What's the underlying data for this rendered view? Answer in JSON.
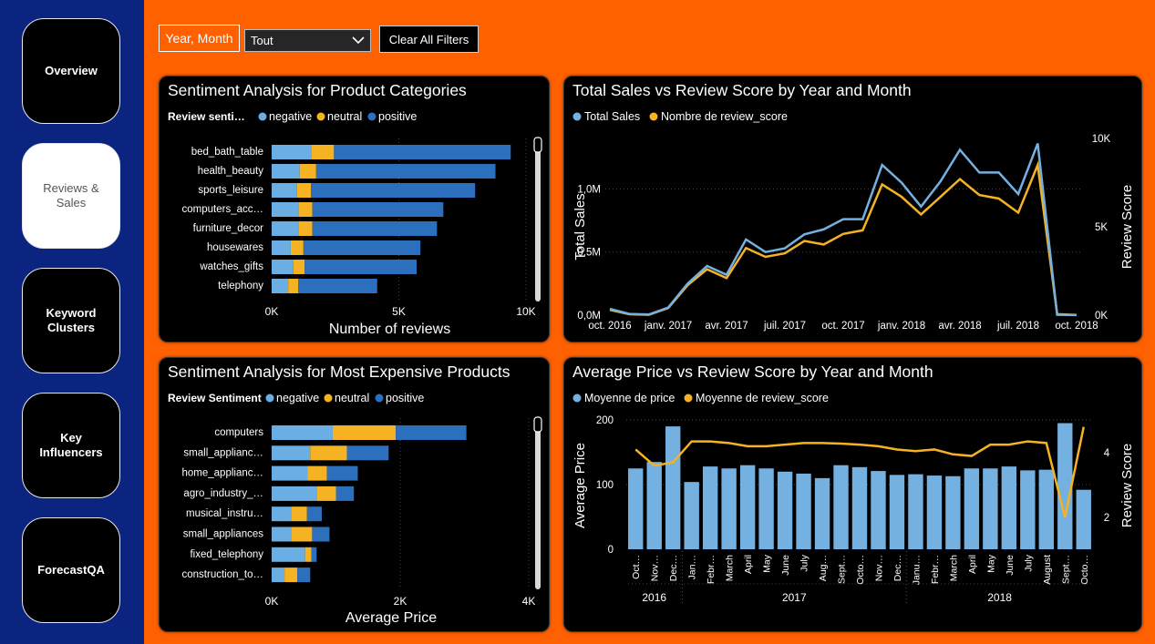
{
  "nav": {
    "overview": "Overview",
    "reviews_sales": [
      "Reviews &",
      "Sales"
    ],
    "keyword_clusters": [
      "Keyword",
      "Clusters"
    ],
    "key_influencers": [
      "Key",
      "Influencers"
    ],
    "forecastqa": "ForecastQA"
  },
  "filters": {
    "year_month_label": "Year, Month",
    "select_value": "Tout",
    "clear_label": "Clear All Filters"
  },
  "colors": {
    "negative": "#6aaee3",
    "neutral": "#f5b324",
    "positive": "#2c6fbd",
    "line_blue": "#74b0e0",
    "line_yellow": "#f5b324",
    "orange": "#ff6000",
    "sidebar": "#0b2480"
  },
  "chart_data": [
    {
      "type": "bar",
      "orientation": "horizontal-stacked",
      "title": "Sentiment Analysis for Product Categories",
      "legend_title": "Review senti…",
      "categories": [
        "bed_bath_table",
        "health_beauty",
        "sports_leisure",
        "computers_acc…",
        "furniture_decor",
        "housewares",
        "watches_gifts",
        "telephony"
      ],
      "series": [
        {
          "name": "negative",
          "values": [
            1550,
            1100,
            1000,
            1050,
            1050,
            750,
            850,
            650
          ]
        },
        {
          "name": "neutral",
          "values": [
            900,
            650,
            550,
            550,
            550,
            500,
            450,
            400
          ]
        },
        {
          "name": "positive",
          "values": [
            6950,
            7050,
            6450,
            5150,
            4900,
            4600,
            4400,
            3100
          ]
        }
      ],
      "xlabel": "Number of reviews",
      "xticks": [
        "0K",
        "5K",
        "10K"
      ],
      "xlim": [
        0,
        10000
      ]
    },
    {
      "type": "line",
      "title": "Total Sales vs Review Score by Year and Month",
      "x": [
        "oct. 2016",
        "nov. 2016",
        "déc. 2016",
        "janv. 2017",
        "févr. 2017",
        "mars 2017",
        "avr. 2017",
        "mai 2017",
        "juin 2017",
        "juil. 2017",
        "août 2017",
        "sept. 2017",
        "oct. 2017",
        "nov. 2017",
        "déc. 2017",
        "janv. 2018",
        "févr. 2018",
        "mars 2018",
        "avr. 2018",
        "mai 2018",
        "juin 2018",
        "juil. 2018",
        "août 2018",
        "sept. 2018",
        "oct. 2018"
      ],
      "xticks": [
        "oct. 2016",
        "janv. 2017",
        "avr. 2017",
        "juil. 2017",
        "oct. 2017",
        "janv. 2018",
        "avr. 2018",
        "juil. 2018",
        "oct. 2018"
      ],
      "series": [
        {
          "name": "Total Sales",
          "axis": "left",
          "values": [
            50000,
            10000,
            5000,
            60000,
            250000,
            390000,
            320000,
            600000,
            500000,
            530000,
            640000,
            680000,
            760000,
            760000,
            1190000,
            1050000,
            860000,
            1060000,
            1310000,
            1130000,
            1130000,
            960000,
            1360000,
            3000,
            1000
          ]
        },
        {
          "name": "Nombre de review_score",
          "axis": "right",
          "values": [
            300,
            50,
            20,
            400,
            1700,
            2600,
            2100,
            3800,
            3300,
            3500,
            4200,
            4000,
            4600,
            4800,
            7400,
            6700,
            5700,
            6700,
            7700,
            6800,
            6600,
            5800,
            8500,
            60,
            10
          ]
        }
      ],
      "ylabel_left": "Total Sales",
      "ylabel_right": "Review Score",
      "yticks_left": [
        "0,0M",
        "0,5M",
        "1,0M"
      ],
      "yticks_right": [
        "0K",
        "5K",
        "10K"
      ],
      "ylim_left": [
        0,
        1400000
      ],
      "ylim_right": [
        0,
        10000
      ]
    },
    {
      "type": "bar",
      "orientation": "horizontal-stacked",
      "title": "Sentiment Analysis for Most Expensive Products",
      "legend_title": "Review Sentiment",
      "categories": [
        "computers",
        "small_applianc…",
        "home_applianc…",
        "agro_industry_…",
        "musical_instru…",
        "small_appliances",
        "fixed_telephony",
        "construction_to…"
      ],
      "series": [
        {
          "name": "negative",
          "values": [
            950,
            600,
            560,
            700,
            300,
            300,
            520,
            200
          ]
        },
        {
          "name": "neutral",
          "values": [
            980,
            570,
            300,
            300,
            250,
            330,
            100,
            200
          ]
        },
        {
          "name": "positive",
          "values": [
            1100,
            650,
            480,
            280,
            230,
            270,
            80,
            200
          ]
        }
      ],
      "xlabel": "Average Price",
      "xticks": [
        "0K",
        "2K",
        "4K"
      ],
      "xlim": [
        0,
        4000
      ]
    },
    {
      "type": "bar",
      "subtype": "bar-line-combo",
      "title": "Average Price vs Review Score by Year and Month",
      "categories": [
        "Oct…",
        "Nov…",
        "Dec…",
        "Jan…",
        "Febr…",
        "March",
        "April",
        "May",
        "June",
        "July",
        "Aug…",
        "Sept…",
        "Octo…",
        "Nov…",
        "Dec…",
        "Janu…",
        "Febr…",
        "March",
        "April",
        "May",
        "June",
        "July",
        "August",
        "Sept…",
        "Octo…"
      ],
      "year_groups": [
        {
          "label": "2016",
          "count": 3
        },
        {
          "label": "2017",
          "count": 12
        },
        {
          "label": "2018",
          "count": 10
        }
      ],
      "series": [
        {
          "name": "Moyenne de price",
          "type": "bar",
          "axis": "left",
          "values": [
            125,
            135,
            190,
            104,
            128,
            125,
            130,
            125,
            120,
            117,
            110,
            130,
            127,
            121,
            115,
            116,
            114,
            113,
            125,
            125,
            128,
            122,
            123,
            195,
            92
          ]
        },
        {
          "name": "Moyenne de review_score",
          "type": "line",
          "axis": "right",
          "values": [
            4.1,
            3.6,
            3.7,
            4.35,
            4.35,
            4.3,
            4.2,
            4.2,
            4.25,
            4.3,
            4.3,
            4.28,
            4.25,
            4.2,
            4.1,
            4.05,
            4.1,
            3.95,
            3.9,
            4.25,
            4.25,
            4.35,
            4.3,
            2.0,
            4.8
          ]
        }
      ],
      "ylabel_left": "Average Price",
      "ylabel_right": "Review Score",
      "yticks_left": [
        "0",
        "100",
        "200"
      ],
      "yticks_right": [
        "2",
        "4"
      ],
      "ylim_left": [
        0,
        200
      ],
      "ylim_right": [
        1,
        5
      ]
    }
  ]
}
